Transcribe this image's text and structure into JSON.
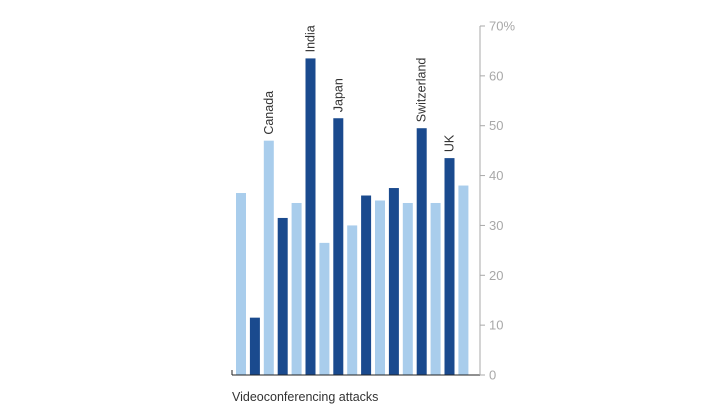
{
  "chart_data": {
    "type": "bar",
    "xlabel": "Videoconferencing attacks",
    "ylabel": "",
    "ylim": [
      0,
      70
    ],
    "yticks": [
      0,
      10,
      20,
      30,
      40,
      50,
      60,
      70
    ],
    "ytick_labels": [
      "0",
      "10",
      "20",
      "30",
      "40",
      "50",
      "60",
      "70%"
    ],
    "y_axis_position": "right",
    "grid": false,
    "colors": {
      "light": "#a9cdec",
      "dark": "#1a4a8e",
      "axis": "#222222",
      "tick_text": "#a8a8a8"
    },
    "bars": [
      {
        "value": 36.5,
        "shade": "light",
        "label": ""
      },
      {
        "value": 11.5,
        "shade": "dark",
        "label": ""
      },
      {
        "value": 47,
        "shade": "light",
        "label": "Canada"
      },
      {
        "value": 31.5,
        "shade": "dark",
        "label": ""
      },
      {
        "value": 34.5,
        "shade": "light",
        "label": ""
      },
      {
        "value": 63.5,
        "shade": "dark",
        "label": "India"
      },
      {
        "value": 26.5,
        "shade": "light",
        "label": ""
      },
      {
        "value": 51.5,
        "shade": "dark",
        "label": "Japan"
      },
      {
        "value": 30,
        "shade": "light",
        "label": ""
      },
      {
        "value": 36,
        "shade": "dark",
        "label": ""
      },
      {
        "value": 35,
        "shade": "light",
        "label": ""
      },
      {
        "value": 37.5,
        "shade": "dark",
        "label": ""
      },
      {
        "value": 34.5,
        "shade": "light",
        "label": ""
      },
      {
        "value": 49.5,
        "shade": "dark",
        "label": "Switzerland"
      },
      {
        "value": 34.5,
        "shade": "light",
        "label": ""
      },
      {
        "value": 43.5,
        "shade": "dark",
        "label": "UK"
      },
      {
        "value": 38,
        "shade": "light",
        "label": ""
      }
    ]
  }
}
